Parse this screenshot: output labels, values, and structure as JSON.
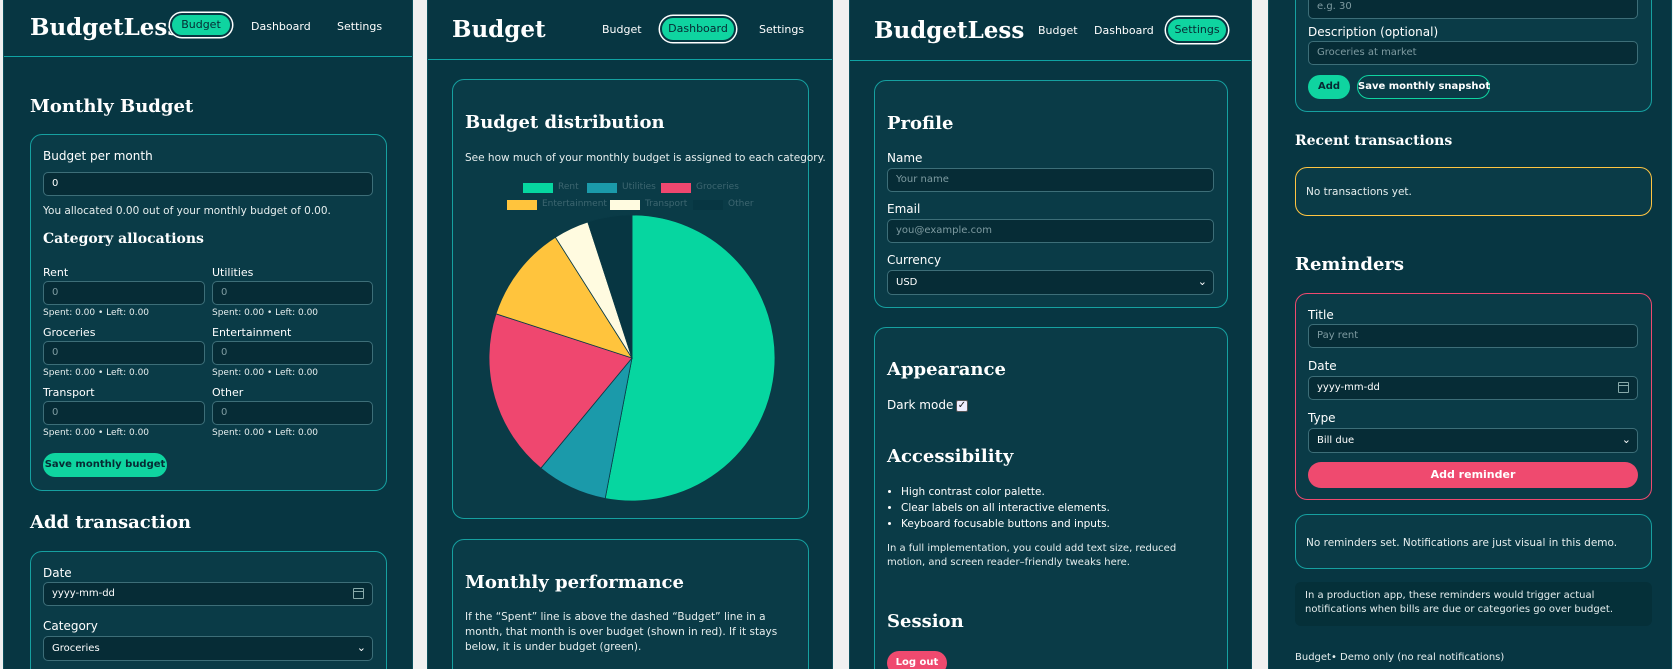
{
  "colors": {
    "accent": "#0fd4a0",
    "danger": "#ef4a6f",
    "warning": "#ffc542",
    "panel_bg": "#073642",
    "card_border": "#16a0a0"
  },
  "nav": {
    "budget": "Budget",
    "dashboard": "Dashboard",
    "settings": "Settings"
  },
  "panel1": {
    "brand": "BudgetLess",
    "monthly_budget_title": "Monthly Budget",
    "budget_per_month_label": "Budget per month",
    "budget_per_month_value": "0",
    "allocated_text": "You allocated 0.00 out of your monthly budget of 0.00.",
    "category_allocations_title": "Category allocations",
    "categories": [
      {
        "name": "Rent",
        "placeholder": "0",
        "stats": "Spent: 0.00 • Left: 0.00"
      },
      {
        "name": "Utilities",
        "placeholder": "0",
        "stats": "Spent: 0.00 • Left: 0.00"
      },
      {
        "name": "Groceries",
        "placeholder": "0",
        "stats": "Spent: 0.00 • Left: 0.00"
      },
      {
        "name": "Entertainment",
        "placeholder": "0",
        "stats": "Spent: 0.00 • Left: 0.00"
      },
      {
        "name": "Transport",
        "placeholder": "0",
        "stats": "Spent: 0.00 • Left: 0.00"
      },
      {
        "name": "Other",
        "placeholder": "0",
        "stats": "Spent: 0.00 • Left: 0.00"
      }
    ],
    "save_button": "Save monthly budget",
    "add_transaction_title": "Add transaction",
    "date_label": "Date",
    "date_placeholder": "yyyy-mm-dd",
    "category_label": "Category",
    "category_value": "Groceries"
  },
  "panel2": {
    "brand": "Budget",
    "distribution_title": "Budget distribution",
    "distribution_desc": "See how much of your monthly budget is assigned to each category.",
    "performance_title": "Monthly performance",
    "performance_desc": "If the “Spent” line is above the dashed “Budget” line in a month, that month is over budget (shown in red). If it stays below, it is under budget (green)."
  },
  "chart_data": {
    "type": "pie",
    "title": "",
    "legend_position": "top",
    "categories": [
      "Rent",
      "Utilities",
      "Groceries",
      "Entertainment",
      "Transport",
      "Other"
    ],
    "values": [
      53,
      8,
      19,
      11,
      4,
      5
    ],
    "colors": [
      "#06d6a0",
      "#1b9aaa",
      "#ef476f",
      "#ffc43d",
      "#fffbe0",
      "#073642"
    ]
  },
  "panel3": {
    "brand": "BudgetLess",
    "profile_title": "Profile",
    "name_label": "Name",
    "name_placeholder": "Your name",
    "email_label": "Email",
    "email_placeholder": "you@example.com",
    "currency_label": "Currency",
    "currency_value": "USD",
    "appearance_title": "Appearance",
    "dark_mode_label": "Dark mode",
    "accessibility_title": "Accessibility",
    "accessibility_items": [
      "High contrast color palette.",
      "Clear labels on all interactive elements.",
      "Keyboard focusable buttons and inputs."
    ],
    "accessibility_note": "In a full implementation, you could add text size, reduced motion, and screen reader–friendly tweaks here.",
    "session_title": "Session",
    "logout_button": "Log out"
  },
  "panel4": {
    "amount_placeholder": "e.g. 30",
    "description_label": "Description (optional)",
    "description_placeholder": "Groceries at market",
    "add_button": "Add",
    "snapshot_button": "Save monthly snapshot",
    "recent_title": "Recent transactions",
    "no_transactions": "No transactions yet.",
    "reminders_title": "Reminders",
    "title_label": "Title",
    "title_placeholder": "Pay rent",
    "date_label": "Date",
    "date_placeholder": "yyyy-mm-dd",
    "type_label": "Type",
    "type_value": "Bill due",
    "add_reminder_button": "Add reminder",
    "no_reminders": "No reminders set. Notifications are just visual in this demo.",
    "production_note": "In a production app, these reminders would trigger actual notifications when bills are due or categories go over budget.",
    "footer": "Budget• Demo only (no real notifications)"
  }
}
